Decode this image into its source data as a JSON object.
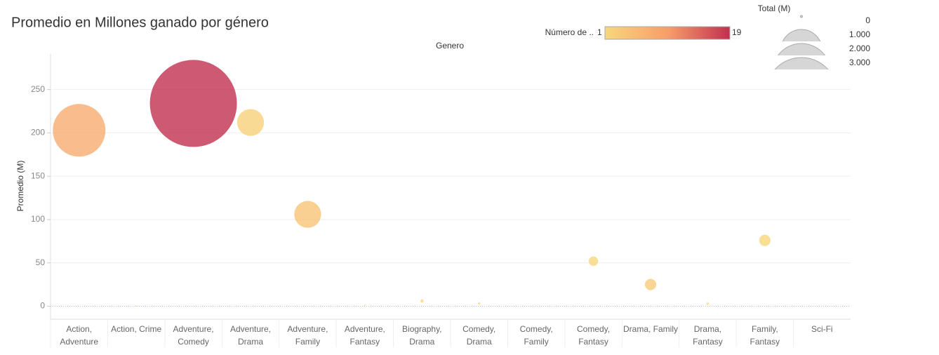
{
  "chart_data": {
    "type": "bubble",
    "title": "Promedio en Millones ganado por género",
    "x_label": "Genero",
    "y_label": "Promedio (M)",
    "categories": [
      "Action, Adventure",
      "Action, Crime",
      "Adventure, Comedy",
      "Adventure, Drama",
      "Adventure, Family",
      "Adventure, Fantasy",
      "Biography, Drama",
      "Comedy, Drama",
      "Comedy, Family",
      "Comedy, Fantasy",
      "Drama, Family",
      "Drama, Fantasy",
      "Family, Fantasy",
      "Sci-Fi"
    ],
    "values": [
      203,
      0.5,
      234,
      212,
      106,
      1,
      6,
      3,
      0.5,
      52,
      25,
      3,
      76,
      0.5
    ],
    "sizes": [
      1624,
      0.5,
      4446,
      424,
      424,
      1,
      6,
      3,
      0.5,
      52,
      75,
      3,
      76,
      0.5
    ],
    "counts": [
      8,
      1,
      19,
      2,
      4,
      1,
      1,
      1,
      1,
      1,
      3,
      1,
      1,
      1
    ],
    "ylim": [
      -15,
      291
    ],
    "yticks": [
      0,
      50,
      100,
      150,
      200,
      250
    ],
    "grid": true,
    "color_legend": {
      "title": "Número de ..",
      "colorlim": [
        1,
        19
      ],
      "ticks": [
        1,
        19
      ],
      "colors": [
        "#f7d77c",
        "#f89e6b",
        "#c1304f"
      ]
    },
    "size_legend": {
      "title": "Total (M)",
      "ticks": [
        0,
        {
          "value": 1000,
          "label": "1.000"
        },
        {
          "value": 2000,
          "label": "2.000"
        },
        {
          "value": 3000,
          "label": "3.000"
        }
      ]
    }
  }
}
